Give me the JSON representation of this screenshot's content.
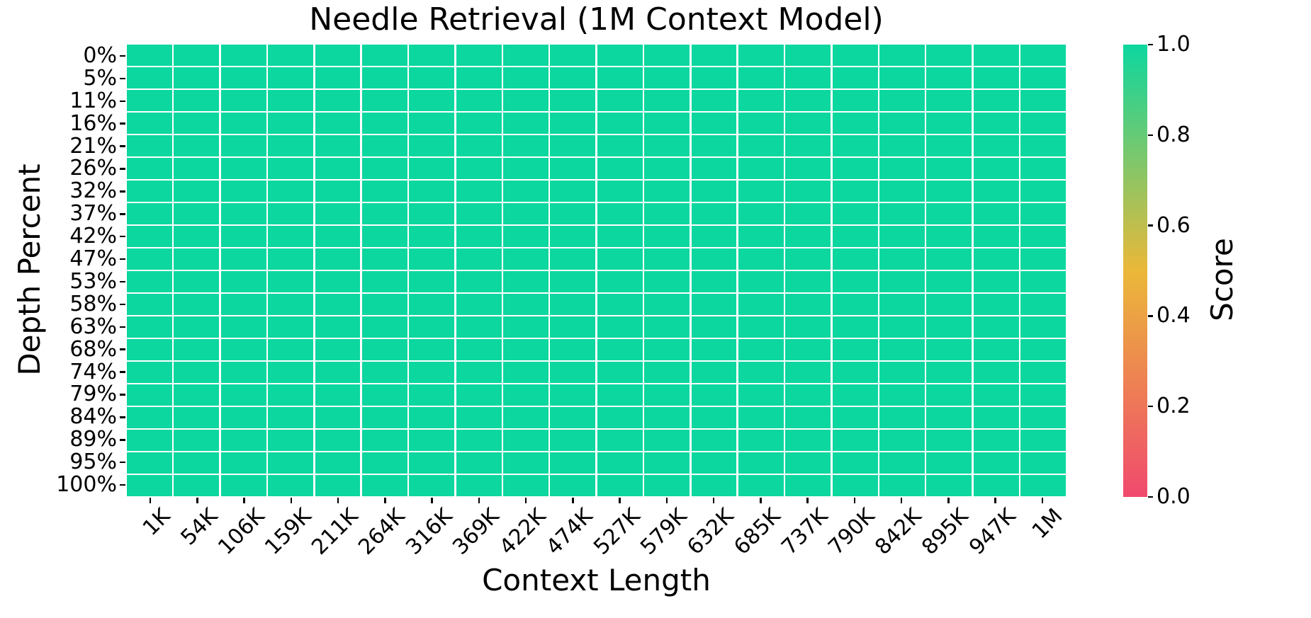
{
  "chart_data": {
    "type": "heatmap",
    "title": "Needle Retrieval (1M Context Model)",
    "xlabel": "Context Length",
    "ylabel": "Depth Percent",
    "x_categories": [
      "1K",
      "54K",
      "106K",
      "159K",
      "211K",
      "264K",
      "316K",
      "369K",
      "422K",
      "474K",
      "527K",
      "579K",
      "632K",
      "685K",
      "737K",
      "790K",
      "842K",
      "895K",
      "947K",
      "1M"
    ],
    "y_categories": [
      "0%",
      "5%",
      "11%",
      "16%",
      "21%",
      "26%",
      "32%",
      "37%",
      "42%",
      "47%",
      "53%",
      "58%",
      "63%",
      "68%",
      "74%",
      "79%",
      "84%",
      "89%",
      "95%",
      "100%"
    ],
    "values": [
      [
        1,
        1,
        1,
        1,
        1,
        1,
        1,
        1,
        1,
        1,
        1,
        1,
        1,
        1,
        1,
        1,
        1,
        1,
        1,
        1
      ],
      [
        1,
        1,
        1,
        1,
        1,
        1,
        1,
        1,
        1,
        1,
        1,
        1,
        1,
        1,
        1,
        1,
        1,
        1,
        1,
        1
      ],
      [
        1,
        1,
        1,
        1,
        1,
        1,
        1,
        1,
        1,
        1,
        1,
        1,
        1,
        1,
        1,
        1,
        1,
        1,
        1,
        1
      ],
      [
        1,
        1,
        1,
        1,
        1,
        1,
        1,
        1,
        1,
        1,
        1,
        1,
        1,
        1,
        1,
        1,
        1,
        1,
        1,
        1
      ],
      [
        1,
        1,
        1,
        1,
        1,
        1,
        1,
        1,
        1,
        1,
        1,
        1,
        1,
        1,
        1,
        1,
        1,
        1,
        1,
        1
      ],
      [
        1,
        1,
        1,
        1,
        1,
        1,
        1,
        1,
        1,
        1,
        1,
        1,
        1,
        1,
        1,
        1,
        1,
        1,
        1,
        1
      ],
      [
        1,
        1,
        1,
        1,
        1,
        1,
        1,
        1,
        1,
        1,
        1,
        1,
        1,
        1,
        1,
        1,
        1,
        1,
        1,
        1
      ],
      [
        1,
        1,
        1,
        1,
        1,
        1,
        1,
        1,
        1,
        1,
        1,
        1,
        1,
        1,
        1,
        1,
        1,
        1,
        1,
        1
      ],
      [
        1,
        1,
        1,
        1,
        1,
        1,
        1,
        1,
        1,
        1,
        1,
        1,
        1,
        1,
        1,
        1,
        1,
        1,
        1,
        1
      ],
      [
        1,
        1,
        1,
        1,
        1,
        1,
        1,
        1,
        1,
        1,
        1,
        1,
        1,
        1,
        1,
        1,
        1,
        1,
        1,
        1
      ],
      [
        1,
        1,
        1,
        1,
        1,
        1,
        1,
        1,
        1,
        1,
        1,
        1,
        1,
        1,
        1,
        1,
        1,
        1,
        1,
        1
      ],
      [
        1,
        1,
        1,
        1,
        1,
        1,
        1,
        1,
        1,
        1,
        1,
        1,
        1,
        1,
        1,
        1,
        1,
        1,
        1,
        1
      ],
      [
        1,
        1,
        1,
        1,
        1,
        1,
        1,
        1,
        1,
        1,
        1,
        1,
        1,
        1,
        1,
        1,
        1,
        1,
        1,
        1
      ],
      [
        1,
        1,
        1,
        1,
        1,
        1,
        1,
        1,
        1,
        1,
        1,
        1,
        1,
        1,
        1,
        1,
        1,
        1,
        1,
        1
      ],
      [
        1,
        1,
        1,
        1,
        1,
        1,
        1,
        1,
        1,
        1,
        1,
        1,
        1,
        1,
        1,
        1,
        1,
        1,
        1,
        1
      ],
      [
        1,
        1,
        1,
        1,
        1,
        1,
        1,
        1,
        1,
        1,
        1,
        1,
        1,
        1,
        1,
        1,
        1,
        1,
        1,
        1
      ],
      [
        1,
        1,
        1,
        1,
        1,
        1,
        1,
        1,
        1,
        1,
        1,
        1,
        1,
        1,
        1,
        1,
        1,
        1,
        1,
        1
      ],
      [
        1,
        1,
        1,
        1,
        1,
        1,
        1,
        1,
        1,
        1,
        1,
        1,
        1,
        1,
        1,
        1,
        1,
        1,
        1,
        1
      ],
      [
        1,
        1,
        1,
        1,
        1,
        1,
        1,
        1,
        1,
        1,
        1,
        1,
        1,
        1,
        1,
        1,
        1,
        1,
        1,
        1
      ],
      [
        1,
        1,
        1,
        1,
        1,
        1,
        1,
        1,
        1,
        1,
        1,
        1,
        1,
        1,
        1,
        1,
        1,
        1,
        1,
        1
      ]
    ],
    "uniform_value": 1.0,
    "cell_color": "#0CD79F",
    "grid_line_color": "#FFFFFF",
    "grid": true,
    "colorbar": {
      "label": "Score",
      "min": 0.0,
      "max": 1.0,
      "ticks": [
        "1.0",
        "0.8",
        "0.6",
        "0.4",
        "0.2",
        "0.0"
      ],
      "colormap_stops": [
        {
          "pos": 0.0,
          "color": "#F0496E"
        },
        {
          "pos": 0.5,
          "color": "#EBB839"
        },
        {
          "pos": 1.0,
          "color": "#0CD79F"
        }
      ],
      "position": "right"
    }
  }
}
